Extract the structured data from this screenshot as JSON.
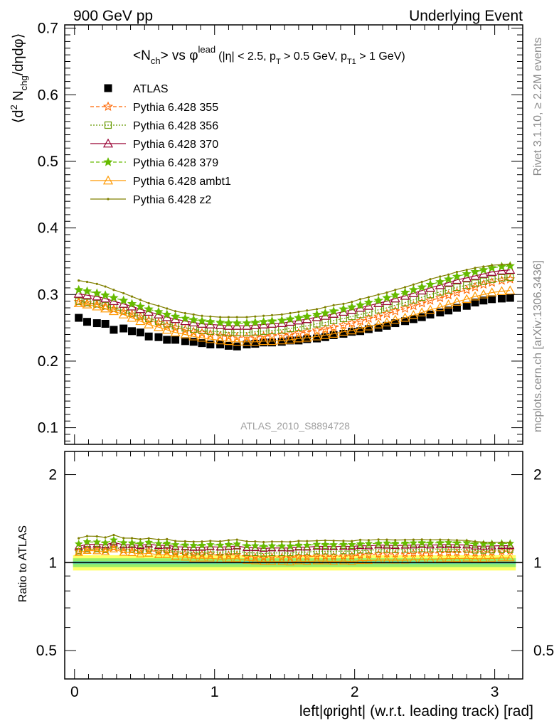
{
  "header": {
    "left": "900 GeV pp",
    "right": "Underlying Event"
  },
  "side_labels": {
    "upper": "Rivet 3.1.10, ≥ 2.2M events",
    "lower": "mcplots.cern.ch [arXiv:1306.3436]"
  },
  "chart_data": {
    "type": "line",
    "title_main": "<N",
    "title_main_sub": "ch",
    "title_vs": "> vs φ",
    "title_sup": "lead",
    "title_cuts": "(|η| < 2.5, p",
    "title_cuts_sub1": "T",
    "title_cuts_mid": " > 0.5 GeV, p",
    "title_cuts_sub2": "T1",
    "title_cuts_end": " > 1 GeV)",
    "watermark": "ATLAS_2010_S8894728",
    "ylabel_main": "⟨d",
    "ylabel_sup": "2",
    "ylabel_mid": " N",
    "ylabel_sub": "chg",
    "ylabel_end": "/dηdφ⟩",
    "ratio_ylabel": "Ratio to ATLAS",
    "xlabel": "left|φright| (w.r.t. leading track) [rad]",
    "xlim": [
      -0.07,
      3.2
    ],
    "ylim": [
      0.075,
      0.705
    ],
    "ratio_ylim": [
      0.4,
      2.4
    ],
    "x_ticks": [
      "0",
      "1",
      "2",
      "3"
    ],
    "y_ticks": [
      "0.1",
      "0.2",
      "0.3",
      "0.4",
      "0.5",
      "0.6",
      "0.7"
    ],
    "ratio_ticks": [
      "0.5",
      "1",
      "2"
    ],
    "ratio_ticks_right": [
      "0.5",
      "1",
      "2"
    ],
    "x": [
      0.03,
      0.09,
      0.16,
      0.22,
      0.28,
      0.35,
      0.41,
      0.47,
      0.53,
      0.6,
      0.66,
      0.72,
      0.79,
      0.85,
      0.91,
      0.97,
      1.04,
      1.1,
      1.16,
      1.23,
      1.29,
      1.35,
      1.41,
      1.48,
      1.54,
      1.6,
      1.66,
      1.73,
      1.79,
      1.85,
      1.92,
      1.98,
      2.04,
      2.1,
      2.17,
      2.23,
      2.29,
      2.36,
      2.42,
      2.48,
      2.54,
      2.61,
      2.67,
      2.73,
      2.8,
      2.86,
      2.92,
      2.98,
      3.05,
      3.11
    ],
    "series": [
      {
        "name": "ATLAS",
        "color": "#000000",
        "marker": "square-filled",
        "values": [
          0.265,
          0.259,
          0.257,
          0.256,
          0.247,
          0.249,
          0.245,
          0.243,
          0.237,
          0.236,
          0.232,
          0.232,
          0.23,
          0.229,
          0.227,
          0.225,
          0.225,
          0.223,
          0.222,
          0.225,
          0.226,
          0.228,
          0.228,
          0.229,
          0.231,
          0.231,
          0.233,
          0.234,
          0.236,
          0.239,
          0.241,
          0.244,
          0.245,
          0.248,
          0.25,
          0.253,
          0.257,
          0.26,
          0.263,
          0.266,
          0.27,
          0.273,
          0.276,
          0.28,
          0.283,
          0.288,
          0.291,
          0.293,
          0.294,
          0.295
        ]
      },
      {
        "name": "Pythia 6.428 355",
        "color": "#ff6600",
        "marker": "star-open",
        "dash": "5,3",
        "values": [
          0.289,
          0.287,
          0.285,
          0.282,
          0.278,
          0.274,
          0.27,
          0.266,
          0.261,
          0.257,
          0.253,
          0.25,
          0.247,
          0.244,
          0.242,
          0.24,
          0.238,
          0.237,
          0.236,
          0.236,
          0.236,
          0.237,
          0.238,
          0.239,
          0.24,
          0.242,
          0.244,
          0.246,
          0.248,
          0.251,
          0.254,
          0.257,
          0.26,
          0.264,
          0.267,
          0.271,
          0.275,
          0.279,
          0.283,
          0.287,
          0.291,
          0.295,
          0.299,
          0.303,
          0.307,
          0.311,
          0.315,
          0.318,
          0.321,
          0.323
        ]
      },
      {
        "name": "Pythia 6.428 356",
        "color": "#669900",
        "marker": "square-open",
        "dash": "2,2",
        "values": [
          0.29,
          0.288,
          0.286,
          0.283,
          0.28,
          0.276,
          0.272,
          0.268,
          0.264,
          0.26,
          0.256,
          0.253,
          0.25,
          0.248,
          0.246,
          0.245,
          0.244,
          0.243,
          0.243,
          0.243,
          0.244,
          0.245,
          0.246,
          0.247,
          0.249,
          0.251,
          0.253,
          0.256,
          0.258,
          0.261,
          0.264,
          0.267,
          0.27,
          0.273,
          0.277,
          0.28,
          0.284,
          0.288,
          0.292,
          0.296,
          0.3,
          0.304,
          0.307,
          0.311,
          0.314,
          0.317,
          0.32,
          0.323,
          0.325,
          0.326
        ]
      },
      {
        "name": "Pythia 6.428 370",
        "color": "#990033",
        "marker": "triangle-open",
        "values": [
          0.301,
          0.299,
          0.297,
          0.294,
          0.29,
          0.286,
          0.282,
          0.278,
          0.274,
          0.27,
          0.266,
          0.263,
          0.26,
          0.258,
          0.256,
          0.255,
          0.254,
          0.253,
          0.253,
          0.253,
          0.254,
          0.255,
          0.256,
          0.257,
          0.259,
          0.261,
          0.263,
          0.266,
          0.268,
          0.271,
          0.274,
          0.277,
          0.28,
          0.283,
          0.287,
          0.29,
          0.294,
          0.298,
          0.302,
          0.306,
          0.31,
          0.314,
          0.318,
          0.322,
          0.325,
          0.328,
          0.331,
          0.334,
          0.336,
          0.337
        ]
      },
      {
        "name": "Pythia 6.428 379",
        "color": "#66bb00",
        "marker": "star-filled",
        "dash": "5,3",
        "values": [
          0.307,
          0.305,
          0.302,
          0.299,
          0.295,
          0.291,
          0.286,
          0.282,
          0.278,
          0.274,
          0.27,
          0.267,
          0.264,
          0.262,
          0.26,
          0.259,
          0.258,
          0.257,
          0.257,
          0.257,
          0.258,
          0.259,
          0.26,
          0.261,
          0.263,
          0.265,
          0.267,
          0.27,
          0.272,
          0.275,
          0.278,
          0.281,
          0.284,
          0.288,
          0.291,
          0.295,
          0.299,
          0.303,
          0.307,
          0.311,
          0.315,
          0.319,
          0.323,
          0.327,
          0.331,
          0.334,
          0.337,
          0.34,
          0.342,
          0.343
        ]
      },
      {
        "name": "Pythia 6.428 ambt1",
        "color": "#ff9900",
        "marker": "triangle-open",
        "values": [
          0.287,
          0.285,
          0.282,
          0.279,
          0.275,
          0.27,
          0.265,
          0.26,
          0.255,
          0.251,
          0.247,
          0.243,
          0.24,
          0.237,
          0.235,
          0.233,
          0.231,
          0.23,
          0.229,
          0.229,
          0.229,
          0.23,
          0.23,
          0.231,
          0.232,
          0.234,
          0.235,
          0.237,
          0.239,
          0.241,
          0.244,
          0.246,
          0.249,
          0.252,
          0.255,
          0.258,
          0.262,
          0.265,
          0.269,
          0.273,
          0.277,
          0.281,
          0.285,
          0.289,
          0.293,
          0.297,
          0.3,
          0.303,
          0.305,
          0.306
        ]
      },
      {
        "name": "Pythia 6.428 z2",
        "color": "#808000",
        "marker": "dot",
        "values": [
          0.321,
          0.319,
          0.316,
          0.312,
          0.307,
          0.302,
          0.297,
          0.292,
          0.287,
          0.283,
          0.279,
          0.275,
          0.272,
          0.27,
          0.268,
          0.267,
          0.266,
          0.266,
          0.266,
          0.266,
          0.267,
          0.268,
          0.269,
          0.27,
          0.272,
          0.274,
          0.276,
          0.278,
          0.281,
          0.284,
          0.286,
          0.289,
          0.293,
          0.296,
          0.3,
          0.303,
          0.307,
          0.311,
          0.315,
          0.319,
          0.323,
          0.327,
          0.33,
          0.334,
          0.337,
          0.34,
          0.342,
          0.344,
          0.345,
          0.346
        ]
      }
    ]
  }
}
